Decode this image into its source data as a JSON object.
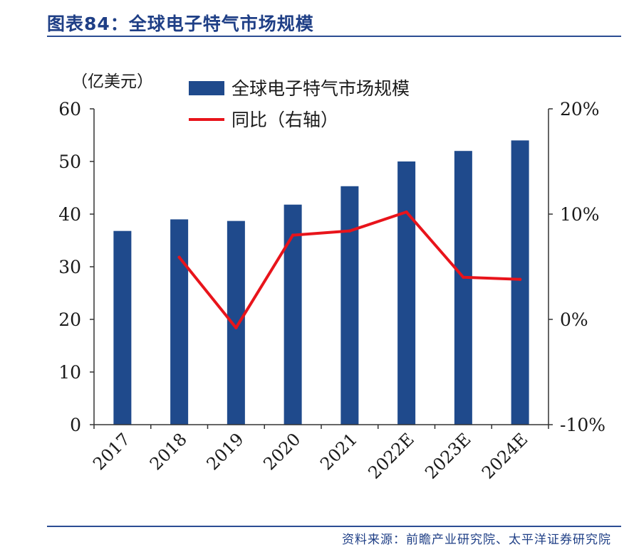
{
  "figure": {
    "title": "图表84：全球电子特气市场规模",
    "source": "资料来源：前瞻产业研究院、太平洋证券研究院"
  },
  "chart_data": {
    "type": "bar",
    "categories": [
      "2017",
      "2018",
      "2019",
      "2020",
      "2021",
      "2022E",
      "2023E",
      "2024E"
    ],
    "series": [
      {
        "name": "全球电子特气市场规模",
        "type": "bar",
        "axis": "left",
        "values": [
          36.8,
          39.0,
          38.7,
          41.8,
          45.3,
          50.0,
          52.0,
          54.0
        ]
      },
      {
        "name": "同比（右轴）",
        "type": "line",
        "axis": "right",
        "values": [
          null,
          5.9,
          -0.8,
          8.0,
          8.4,
          10.2,
          4.0,
          3.8
        ]
      }
    ],
    "left_unit": "（亿美元）",
    "ylim": [
      0,
      60
    ],
    "yticks": [
      0,
      10,
      20,
      30,
      40,
      50,
      60
    ],
    "y2lim": [
      -10,
      20
    ],
    "y2ticks": [
      "-10%",
      "0%",
      "10%",
      "20%"
    ],
    "y2tick_values": [
      -10,
      0,
      10,
      20
    ],
    "legend": "top-center",
    "grid": false,
    "colors": {
      "bar": "#1f4a8c",
      "line": "#e8141b",
      "title": "#1f3f86",
      "axis": "#333333"
    }
  }
}
